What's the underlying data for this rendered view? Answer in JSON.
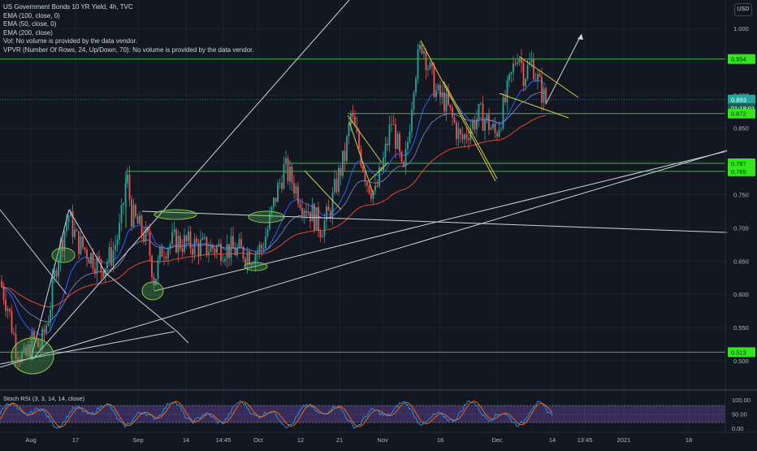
{
  "legend": {
    "title": "US Government Bonds 10 YR Yield, 4h, TVC",
    "lines": [
      "EMA (100, close, 0)",
      "EMA (50, close, 0)",
      "EMA (200, close)",
      "Vol: No volume is provided by the data vendor.",
      "VPVR (Number Of Rows, 24, Up/Down, 70): No volume is provided by the data vendor."
    ]
  },
  "currency_button": "USD",
  "oscillator_label": "Stoch RSI (3, 3, 14, 14, close)",
  "colors": {
    "background": "#131722",
    "up": "#26a69a",
    "down": "#ef5350",
    "support": "#4caf50",
    "channel": "#d4d43a",
    "trendline": "#d1d4dc",
    "ema_blue": "#2962ff",
    "ema_red": "#e8452c",
    "stoch_k": "#2196f3",
    "stoch_d": "#ff6d00",
    "stoch_band": "#7e57c2"
  },
  "chart_data": {
    "type": "candlestick",
    "instrument": "US Government Bonds 10 YR Yield",
    "timeframe": "4h",
    "y_ticks": [
      "1.000",
      "0.900",
      "0.850",
      "0.800",
      "0.750",
      "0.700",
      "0.650",
      "0.600",
      "0.550",
      "0.500"
    ],
    "y_range": [
      0.47,
      1.02
    ],
    "x_ticks": [
      "Aug",
      "17",
      "Sep",
      "14",
      "14:45",
      "Oct",
      "12",
      "21",
      "Nov",
      "16",
      "Dec",
      "14",
      "13:45",
      "2021",
      "18"
    ],
    "price_labels": [
      {
        "text": "0.954",
        "value": 0.954,
        "type": "line"
      },
      {
        "text": "0.893",
        "value": 0.893,
        "type": "last"
      },
      {
        "text": "01:18:01",
        "value": 0.882,
        "type": "timer"
      },
      {
        "text": "0.872",
        "value": 0.872,
        "type": "line"
      },
      {
        "text": "0.797",
        "value": 0.797,
        "type": "line"
      },
      {
        "text": "0.785",
        "value": 0.785,
        "type": "line"
      },
      {
        "text": "0.513",
        "value": 0.513,
        "type": "line"
      }
    ],
    "horizontal_levels": [
      0.954,
      0.872,
      0.797,
      0.785,
      0.513
    ],
    "price_path": [
      [
        0,
        0.62
      ],
      [
        10,
        0.58
      ],
      [
        20,
        0.52
      ],
      [
        30,
        0.5
      ],
      [
        40,
        0.53
      ],
      [
        50,
        0.52
      ],
      [
        60,
        0.57
      ],
      [
        70,
        0.65
      ],
      [
        80,
        0.7
      ],
      [
        84,
        0.72
      ],
      [
        95,
        0.68
      ],
      [
        110,
        0.66
      ],
      [
        125,
        0.64
      ],
      [
        138,
        0.66
      ],
      [
        148,
        0.7
      ],
      [
        152,
        0.74
      ],
      [
        156,
        0.78
      ],
      [
        162,
        0.72
      ],
      [
        172,
        0.7
      ],
      [
        182,
        0.68
      ],
      [
        190,
        0.62
      ],
      [
        200,
        0.67
      ],
      [
        215,
        0.68
      ],
      [
        235,
        0.675
      ],
      [
        255,
        0.67
      ],
      [
        275,
        0.67
      ],
      [
        295,
        0.665
      ],
      [
        310,
        0.66
      ],
      [
        322,
        0.67
      ],
      [
        330,
        0.7
      ],
      [
        340,
        0.75
      ],
      [
        350,
        0.79
      ],
      [
        360,
        0.77
      ],
      [
        372,
        0.74
      ],
      [
        385,
        0.72
      ],
      [
        395,
        0.7
      ],
      [
        405,
        0.72
      ],
      [
        415,
        0.77
      ],
      [
        425,
        0.81
      ],
      [
        432,
        0.87
      ],
      [
        442,
        0.82
      ],
      [
        452,
        0.77
      ],
      [
        462,
        0.75
      ],
      [
        472,
        0.8
      ],
      [
        482,
        0.86
      ],
      [
        490,
        0.82
      ],
      [
        496,
        0.77
      ],
      [
        502,
        0.83
      ],
      [
        510,
        0.93
      ],
      [
        520,
        0.98
      ],
      [
        528,
        0.94
      ],
      [
        538,
        0.9
      ],
      [
        548,
        0.89
      ],
      [
        558,
        0.86
      ],
      [
        568,
        0.83
      ],
      [
        578,
        0.85
      ],
      [
        590,
        0.87
      ],
      [
        600,
        0.86
      ],
      [
        610,
        0.84
      ],
      [
        620,
        0.88
      ],
      [
        630,
        0.93
      ],
      [
        638,
        0.97
      ],
      [
        645,
        0.93
      ],
      [
        655,
        0.95
      ],
      [
        665,
        0.91
      ],
      [
        672,
        0.89
      ]
    ],
    "stoch_rsi_ticks": [
      "100.00",
      "50.00",
      "0.00"
    ],
    "stoch_rsi_band": [
      20,
      80
    ]
  }
}
